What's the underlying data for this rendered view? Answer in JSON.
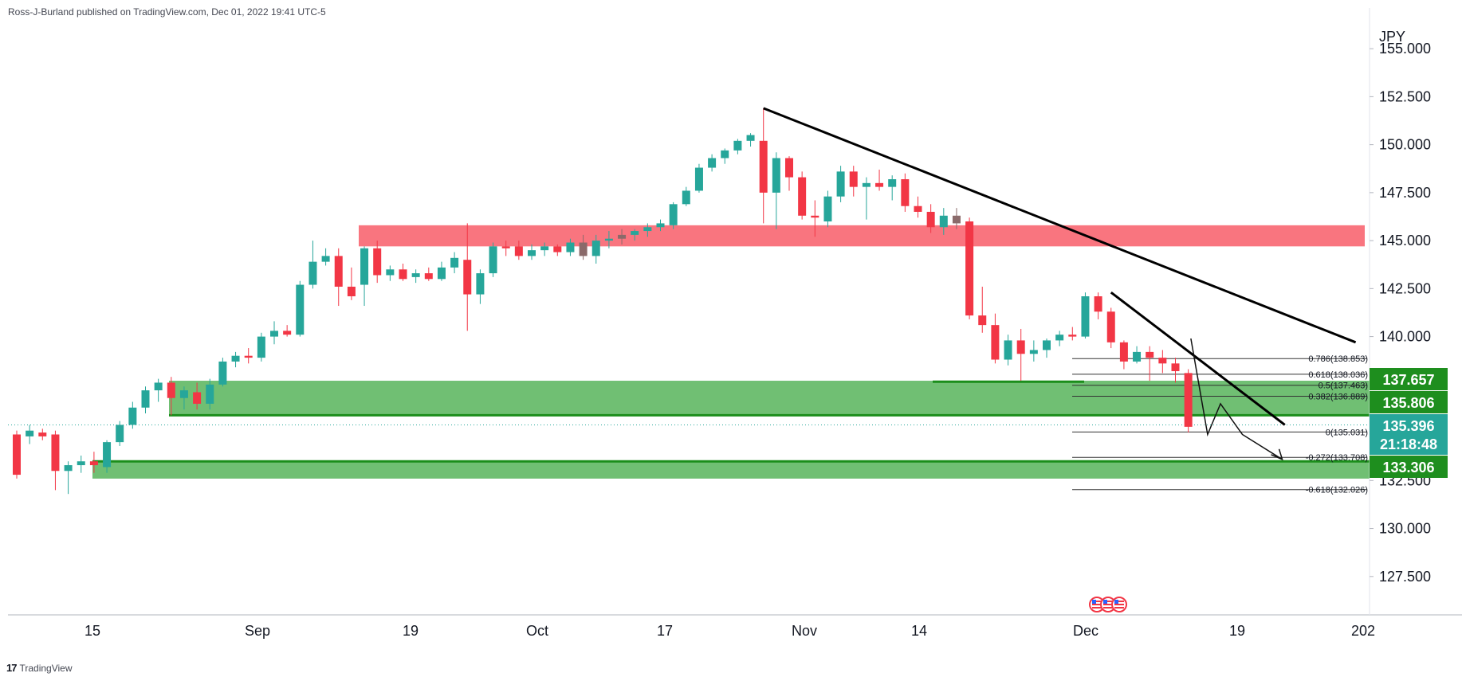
{
  "header": {
    "publisher_text": "Ross-J-Burland published on TradingView.com, Dec 01, 2022 19:41 UTC-5"
  },
  "footer": {
    "brand": "TradingView",
    "logo": "tradingview-logo-icon"
  },
  "colors": {
    "up": "#26a69a",
    "down": "#f23645",
    "neutral": "#8a6a6a",
    "resistance_zone": "#f7525f",
    "support_zone": "#4caf50",
    "badge_green": "#1e8e1e",
    "badge_teal": "#26a69a",
    "trendline": "#000000",
    "grid_bg": "#ffffff"
  },
  "chart_data": {
    "type": "candlestick",
    "currency_label": "JPY",
    "ylim": [
      125.5,
      156.5
    ],
    "y_ticks": [
      "155.000",
      "152.500",
      "150.000",
      "147.500",
      "145.000",
      "142.500",
      "140.000",
      "132.500",
      "130.000",
      "127.500"
    ],
    "x_ticks": [
      "15",
      "Sep",
      "19",
      "Oct",
      "17",
      "Nov",
      "14",
      "Dec",
      "19",
      "202"
    ],
    "price_badges": [
      {
        "label": "137.657",
        "value": 137.657,
        "color": "green"
      },
      {
        "label": "135.806",
        "value": 135.806,
        "color": "green"
      },
      {
        "label": "135.396",
        "value": 135.396,
        "color": "teal"
      },
      {
        "label": "21:18:48",
        "value": 134.5,
        "color": "teal"
      },
      {
        "label": "133.306",
        "value": 133.306,
        "color": "green"
      }
    ],
    "fibonacci": [
      {
        "label": "0.786(138.853)",
        "value": 138.853
      },
      {
        "label": "0.618(138.036)",
        "value": 138.036
      },
      {
        "label": "0.5(137.463)",
        "value": 137.463
      },
      {
        "label": "0.382(136.889)",
        "value": 136.889
      },
      {
        "label": "0(135.031)",
        "value": 135.031
      },
      {
        "label": "-0.272(133.708)",
        "value": 133.708
      },
      {
        "label": "-0.618(132.026)",
        "value": 132.026
      }
    ],
    "zones": [
      {
        "name": "resistance",
        "low": 144.7,
        "high": 145.8
      },
      {
        "name": "support-upper",
        "low": 135.9,
        "high": 137.7
      },
      {
        "name": "support-lower",
        "low": 132.6,
        "high": 133.5
      }
    ],
    "candles": [
      {
        "o": 134.9,
        "h": 135.1,
        "l": 132.6,
        "c": 132.8
      },
      {
        "o": 134.8,
        "h": 135.4,
        "l": 134.4,
        "c": 135.1
      },
      {
        "o": 135.0,
        "h": 135.2,
        "l": 134.6,
        "c": 134.8
      },
      {
        "o": 134.9,
        "h": 135.1,
        "l": 132.0,
        "c": 133.0
      },
      {
        "o": 133.0,
        "h": 133.5,
        "l": 131.8,
        "c": 133.3
      },
      {
        "o": 133.3,
        "h": 133.8,
        "l": 132.9,
        "c": 133.5
      },
      {
        "o": 133.5,
        "h": 134.0,
        "l": 132.9,
        "c": 133.3
      },
      {
        "o": 133.2,
        "h": 134.6,
        "l": 132.9,
        "c": 134.5
      },
      {
        "o": 134.5,
        "h": 135.6,
        "l": 134.3,
        "c": 135.4
      },
      {
        "o": 135.4,
        "h": 136.6,
        "l": 135.2,
        "c": 136.3
      },
      {
        "o": 136.3,
        "h": 137.4,
        "l": 136.0,
        "c": 137.2
      },
      {
        "o": 137.2,
        "h": 137.8,
        "l": 136.6,
        "c": 137.6
      },
      {
        "o": 137.6,
        "h": 137.9,
        "l": 135.9,
        "c": 136.8
      },
      {
        "o": 136.8,
        "h": 137.4,
        "l": 136.2,
        "c": 137.2
      },
      {
        "o": 137.1,
        "h": 137.6,
        "l": 136.2,
        "c": 136.5
      },
      {
        "o": 136.5,
        "h": 137.8,
        "l": 136.2,
        "c": 137.5
      },
      {
        "o": 137.5,
        "h": 138.9,
        "l": 137.4,
        "c": 138.7
      },
      {
        "o": 138.7,
        "h": 139.2,
        "l": 138.4,
        "c": 139.0
      },
      {
        "o": 139.0,
        "h": 139.4,
        "l": 138.6,
        "c": 138.9
      },
      {
        "o": 138.9,
        "h": 140.2,
        "l": 138.7,
        "c": 140.0
      },
      {
        "o": 140.0,
        "h": 140.8,
        "l": 139.6,
        "c": 140.3
      },
      {
        "o": 140.3,
        "h": 140.6,
        "l": 140.0,
        "c": 140.1
      },
      {
        "o": 140.1,
        "h": 142.9,
        "l": 140.0,
        "c": 142.7
      },
      {
        "o": 142.7,
        "h": 145.0,
        "l": 142.5,
        "c": 143.9
      },
      {
        "o": 143.9,
        "h": 144.6,
        "l": 143.7,
        "c": 144.2
      },
      {
        "o": 144.2,
        "h": 144.6,
        "l": 141.6,
        "c": 142.6
      },
      {
        "o": 142.6,
        "h": 143.6,
        "l": 141.9,
        "c": 142.1
      },
      {
        "o": 142.7,
        "h": 144.7,
        "l": 141.6,
        "c": 144.6
      },
      {
        "o": 144.6,
        "h": 145.0,
        "l": 142.8,
        "c": 143.2
      },
      {
        "o": 143.2,
        "h": 143.7,
        "l": 142.9,
        "c": 143.5
      },
      {
        "o": 143.5,
        "h": 143.8,
        "l": 142.9,
        "c": 143.0
      },
      {
        "o": 143.1,
        "h": 143.5,
        "l": 142.8,
        "c": 143.3
      },
      {
        "o": 143.3,
        "h": 143.6,
        "l": 142.9,
        "c": 143.0
      },
      {
        "o": 143.0,
        "h": 143.9,
        "l": 142.9,
        "c": 143.6
      },
      {
        "o": 143.6,
        "h": 144.4,
        "l": 143.3,
        "c": 144.1
      },
      {
        "o": 144.0,
        "h": 145.9,
        "l": 140.3,
        "c": 142.2
      },
      {
        "o": 142.2,
        "h": 143.5,
        "l": 141.7,
        "c": 143.3
      },
      {
        "o": 143.3,
        "h": 144.9,
        "l": 143.1,
        "c": 144.7
      },
      {
        "o": 144.7,
        "h": 145.0,
        "l": 144.2,
        "c": 144.6
      },
      {
        "o": 144.7,
        "h": 145.0,
        "l": 144.0,
        "c": 144.2
      },
      {
        "o": 144.2,
        "h": 144.8,
        "l": 144.0,
        "c": 144.5
      },
      {
        "o": 144.5,
        "h": 144.9,
        "l": 144.2,
        "c": 144.7
      },
      {
        "o": 144.7,
        "h": 144.8,
        "l": 144.2,
        "c": 144.4
      },
      {
        "o": 144.4,
        "h": 145.1,
        "l": 144.2,
        "c": 144.9
      },
      {
        "o": 144.9,
        "h": 145.3,
        "l": 144.0,
        "c": 144.2
      },
      {
        "o": 144.2,
        "h": 145.3,
        "l": 143.8,
        "c": 145.0
      },
      {
        "o": 145.0,
        "h": 145.5,
        "l": 144.6,
        "c": 145.1
      },
      {
        "o": 145.1,
        "h": 145.6,
        "l": 144.8,
        "c": 145.3
      },
      {
        "o": 145.3,
        "h": 145.6,
        "l": 145.0,
        "c": 145.5
      },
      {
        "o": 145.5,
        "h": 145.9,
        "l": 145.2,
        "c": 145.7
      },
      {
        "o": 145.7,
        "h": 146.1,
        "l": 145.5,
        "c": 145.9
      },
      {
        "o": 145.8,
        "h": 147.0,
        "l": 145.6,
        "c": 146.9
      },
      {
        "o": 146.9,
        "h": 147.8,
        "l": 146.8,
        "c": 147.6
      },
      {
        "o": 147.6,
        "h": 149.0,
        "l": 147.5,
        "c": 148.8
      },
      {
        "o": 148.8,
        "h": 149.5,
        "l": 148.6,
        "c": 149.3
      },
      {
        "o": 149.3,
        "h": 149.8,
        "l": 149.0,
        "c": 149.7
      },
      {
        "o": 149.7,
        "h": 150.3,
        "l": 149.5,
        "c": 150.2
      },
      {
        "o": 150.2,
        "h": 150.6,
        "l": 149.9,
        "c": 150.5
      },
      {
        "o": 150.2,
        "h": 151.9,
        "l": 145.9,
        "c": 147.5
      },
      {
        "o": 147.5,
        "h": 149.6,
        "l": 145.6,
        "c": 149.3
      },
      {
        "o": 149.3,
        "h": 149.4,
        "l": 147.6,
        "c": 148.3
      },
      {
        "o": 148.3,
        "h": 148.6,
        "l": 146.1,
        "c": 146.3
      },
      {
        "o": 146.3,
        "h": 147.1,
        "l": 145.2,
        "c": 146.2
      },
      {
        "o": 146.0,
        "h": 147.6,
        "l": 145.7,
        "c": 147.3
      },
      {
        "o": 147.3,
        "h": 148.9,
        "l": 147.0,
        "c": 148.6
      },
      {
        "o": 148.6,
        "h": 148.9,
        "l": 147.3,
        "c": 147.8
      },
      {
        "o": 147.8,
        "h": 148.3,
        "l": 146.1,
        "c": 148.0
      },
      {
        "o": 148.0,
        "h": 148.7,
        "l": 147.6,
        "c": 147.8
      },
      {
        "o": 147.8,
        "h": 148.4,
        "l": 147.1,
        "c": 148.2
      },
      {
        "o": 148.2,
        "h": 148.5,
        "l": 146.5,
        "c": 146.8
      },
      {
        "o": 146.8,
        "h": 147.3,
        "l": 146.2,
        "c": 146.5
      },
      {
        "o": 146.5,
        "h": 146.9,
        "l": 145.4,
        "c": 145.7
      },
      {
        "o": 145.7,
        "h": 146.7,
        "l": 145.3,
        "c": 146.3
      },
      {
        "o": 146.3,
        "h": 146.7,
        "l": 145.6,
        "c": 145.9
      },
      {
        "o": 146.0,
        "h": 146.2,
        "l": 140.9,
        "c": 141.1
      },
      {
        "o": 141.1,
        "h": 142.6,
        "l": 140.2,
        "c": 140.6
      },
      {
        "o": 140.6,
        "h": 141.2,
        "l": 138.6,
        "c": 138.8
      },
      {
        "o": 138.8,
        "h": 140.1,
        "l": 138.5,
        "c": 139.8
      },
      {
        "o": 139.8,
        "h": 140.4,
        "l": 137.7,
        "c": 139.1
      },
      {
        "o": 139.1,
        "h": 139.8,
        "l": 138.7,
        "c": 139.3
      },
      {
        "o": 139.3,
        "h": 139.9,
        "l": 138.9,
        "c": 139.8
      },
      {
        "o": 139.8,
        "h": 140.3,
        "l": 139.5,
        "c": 140.1
      },
      {
        "o": 140.1,
        "h": 140.5,
        "l": 139.8,
        "c": 140.0
      },
      {
        "o": 140.0,
        "h": 142.3,
        "l": 139.9,
        "c": 142.1
      },
      {
        "o": 142.1,
        "h": 142.3,
        "l": 140.9,
        "c": 141.3
      },
      {
        "o": 141.3,
        "h": 141.5,
        "l": 139.4,
        "c": 139.7
      },
      {
        "o": 139.7,
        "h": 139.8,
        "l": 138.3,
        "c": 138.7
      },
      {
        "o": 138.7,
        "h": 139.5,
        "l": 138.6,
        "c": 139.2
      },
      {
        "o": 139.2,
        "h": 139.5,
        "l": 137.7,
        "c": 138.9
      },
      {
        "o": 138.9,
        "h": 139.3,
        "l": 138.1,
        "c": 138.6
      },
      {
        "o": 138.6,
        "h": 138.9,
        "l": 137.6,
        "c": 138.2
      },
      {
        "o": 138.1,
        "h": 138.3,
        "l": 135.0,
        "c": 135.3
      }
    ],
    "neutral_candles": [
      44,
      47,
      73
    ],
    "trendlines": [
      {
        "name": "upper-trendline",
        "from": {
          "i": 58,
          "v": 151.9
        },
        "to": {
          "i": 104,
          "v": 139.7
        }
      },
      {
        "name": "lower-trendline",
        "from": {
          "i": 85,
          "v": 142.3
        },
        "to": {
          "i": 98.5,
          "v": 135.4
        }
      }
    ],
    "projection": {
      "name": "projected-path",
      "points": [
        {
          "i": 91.2,
          "v": 139.9
        },
        {
          "i": 92.5,
          "v": 134.9
        },
        {
          "i": 93.5,
          "v": 136.5
        },
        {
          "i": 95.2,
          "v": 134.9
        },
        {
          "i": 98.3,
          "v": 133.6
        }
      ]
    },
    "last_price": 135.396,
    "grid": false,
    "event_icons": 3
  }
}
